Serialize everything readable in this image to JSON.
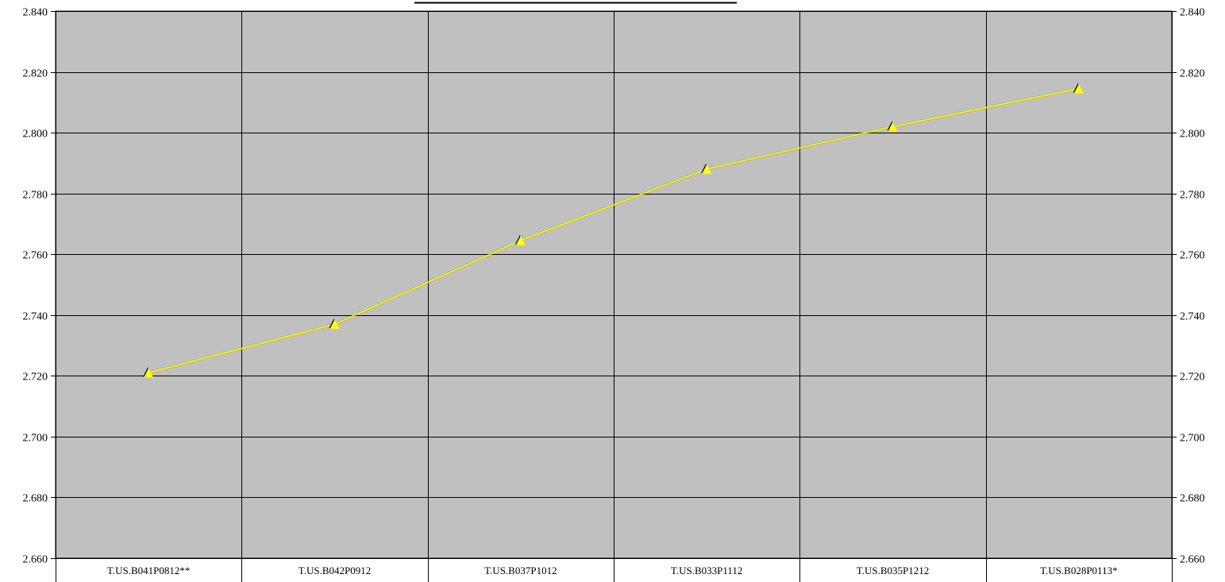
{
  "chart_data": {
    "type": "line",
    "title": "",
    "xlabel": "",
    "ylabel": "",
    "categories": [
      "T.US.B041P0812**",
      "T.US.B042P0912",
      "T.US.B037P1012",
      "T.US.B033P1112",
      "T.US.B035P1212",
      "T.US.B028P0113*"
    ],
    "series": [
      {
        "values": [
          2.721,
          2.737,
          2.7645,
          2.788,
          2.802,
          2.8145
        ]
      }
    ],
    "ylim": [
      2.66,
      2.84
    ],
    "yticks": [
      "2.660",
      "2.680",
      "2.700",
      "2.720",
      "2.740",
      "2.760",
      "2.780",
      "2.800",
      "2.820",
      "2.840"
    ],
    "secondary_y_axis": true,
    "grid": true,
    "legend": "none",
    "colors": {
      "plot_background": "#c0c0c0",
      "line": "#ffff00",
      "marker": "#ffff00",
      "marker_shadow": "#000080",
      "grid": "#000000"
    }
  }
}
